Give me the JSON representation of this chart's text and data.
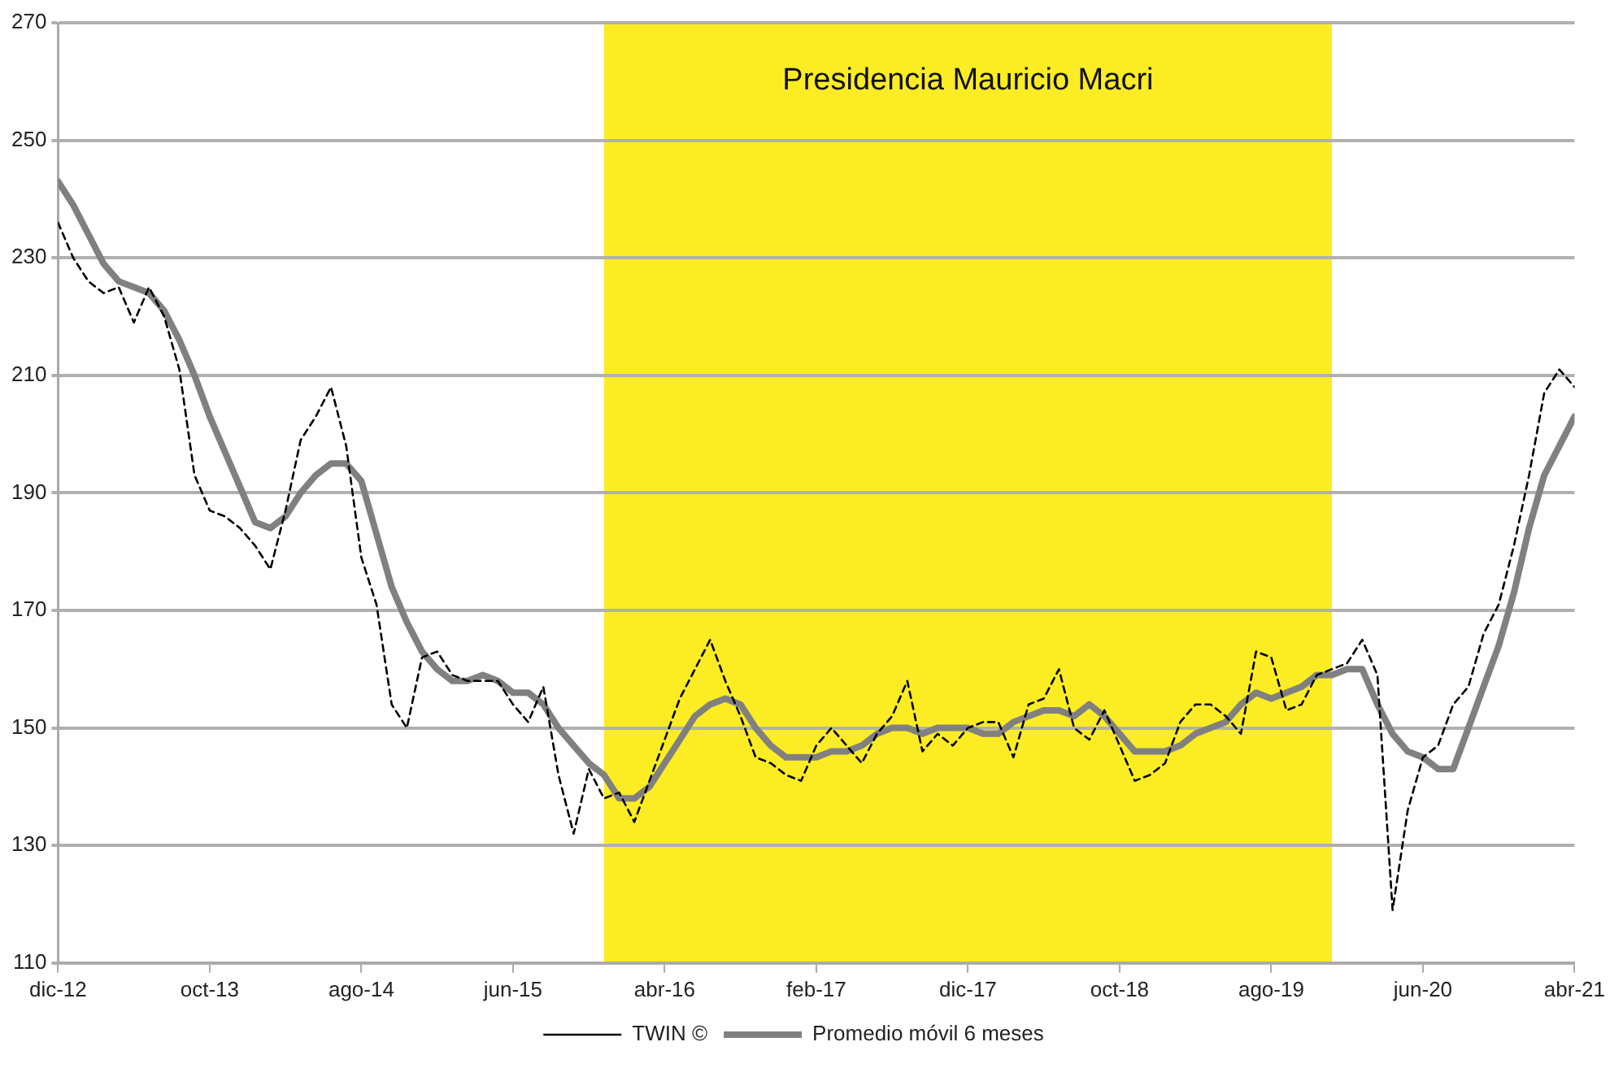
{
  "chart_data": {
    "type": "line",
    "x": [
      "2012-12",
      "2013-01",
      "2013-02",
      "2013-03",
      "2013-04",
      "2013-05",
      "2013-06",
      "2013-07",
      "2013-08",
      "2013-09",
      "2013-10",
      "2013-11",
      "2013-12",
      "2014-01",
      "2014-02",
      "2014-03",
      "2014-04",
      "2014-05",
      "2014-06",
      "2014-07",
      "2014-08",
      "2014-09",
      "2014-10",
      "2014-11",
      "2014-12",
      "2015-01",
      "2015-02",
      "2015-03",
      "2015-04",
      "2015-05",
      "2015-06",
      "2015-07",
      "2015-08",
      "2015-09",
      "2015-10",
      "2015-11",
      "2015-12",
      "2016-01",
      "2016-02",
      "2016-03",
      "2016-04",
      "2016-05",
      "2016-06",
      "2016-07",
      "2016-08",
      "2016-09",
      "2016-10",
      "2016-11",
      "2016-12",
      "2017-01",
      "2017-02",
      "2017-03",
      "2017-04",
      "2017-05",
      "2017-06",
      "2017-07",
      "2017-08",
      "2017-09",
      "2017-10",
      "2017-11",
      "2017-12",
      "2018-01",
      "2018-02",
      "2018-03",
      "2018-04",
      "2018-05",
      "2018-06",
      "2018-07",
      "2018-08",
      "2018-09",
      "2018-10",
      "2018-11",
      "2018-12",
      "2019-01",
      "2019-02",
      "2019-03",
      "2019-04",
      "2019-05",
      "2019-06",
      "2019-07",
      "2019-08",
      "2019-09",
      "2019-10",
      "2019-11",
      "2019-12",
      "2020-01",
      "2020-02",
      "2020-03",
      "2020-04",
      "2020-05",
      "2020-06",
      "2020-07",
      "2020-08",
      "2020-09",
      "2020-10",
      "2020-11",
      "2020-12",
      "2021-01",
      "2021-02",
      "2021-03",
      "2021-04"
    ],
    "series": [
      {
        "name": "TWIN ©",
        "color": "#000000",
        "line_style": "dashed",
        "values": [
          236,
          230,
          226,
          224,
          225,
          219,
          225,
          220,
          211,
          193,
          187,
          186,
          184,
          181,
          177,
          187,
          199,
          203,
          208,
          198,
          179,
          171,
          154,
          150,
          162,
          163,
          159,
          158,
          158,
          158,
          154,
          151,
          157,
          142,
          132,
          143,
          138,
          139,
          134,
          141,
          148,
          155,
          160,
          165,
          158,
          152,
          145,
          144,
          142,
          141,
          147,
          150,
          147,
          144,
          149,
          152,
          158,
          146,
          149,
          147,
          150,
          151,
          151,
          145,
          154,
          155,
          160,
          150,
          148,
          153,
          147,
          141,
          142,
          144,
          151,
          154,
          154,
          152,
          149,
          163,
          162,
          153,
          154,
          159,
          160,
          161,
          165,
          159,
          119,
          136,
          145,
          147,
          154,
          157,
          166,
          171,
          181,
          193,
          207,
          211,
          208
        ]
      },
      {
        "name": "Promedio móvil 6 meses",
        "color": "#808080",
        "line_style": "solid",
        "values": [
          243,
          239,
          234,
          229,
          226,
          225,
          224,
          221,
          216,
          210,
          203,
          197,
          191,
          185,
          184,
          186,
          190,
          193,
          195,
          195,
          192,
          183,
          174,
          168,
          163,
          160,
          158,
          158,
          159,
          158,
          156,
          156,
          154,
          150,
          147,
          144,
          142,
          138,
          138,
          140,
          144,
          148,
          152,
          154,
          155,
          154,
          150,
          147,
          145,
          145,
          145,
          146,
          146,
          147,
          149,
          150,
          150,
          149,
          150,
          150,
          150,
          149,
          149,
          151,
          152,
          153,
          153,
          152,
          154,
          152,
          149,
          146,
          146,
          146,
          147,
          149,
          150,
          151,
          154,
          156,
          155,
          156,
          157,
          159,
          159,
          160,
          160,
          154,
          149,
          146,
          145,
          143,
          143,
          150,
          157,
          164,
          173,
          184,
          193,
          198,
          203
        ]
      }
    ],
    "xlim": [
      "2012-12",
      "2021-04"
    ],
    "xticks": [
      {
        "value": "2012-12",
        "label": "dic-12"
      },
      {
        "value": "2013-10",
        "label": "oct-13"
      },
      {
        "value": "2014-08",
        "label": "ago-14"
      },
      {
        "value": "2015-06",
        "label": "jun-15"
      },
      {
        "value": "2016-04",
        "label": "abr-16"
      },
      {
        "value": "2017-02",
        "label": "feb-17"
      },
      {
        "value": "2017-12",
        "label": "dic-17"
      },
      {
        "value": "2018-10",
        "label": "oct-18"
      },
      {
        "value": "2019-08",
        "label": "ago-19"
      },
      {
        "value": "2020-06",
        "label": "jun-20"
      },
      {
        "value": "2021-04",
        "label": "abr-21"
      }
    ],
    "ylim": [
      110,
      270
    ],
    "yticks": [
      110,
      130,
      150,
      170,
      190,
      210,
      230,
      250,
      270
    ],
    "bands": [
      {
        "axis": "x",
        "from": "2015-12",
        "to": "2019-12",
        "label": "Presidencia Mauricio Macri",
        "color": "#fcec24"
      }
    ],
    "grid": "y",
    "legend": "bottom",
    "marker": "none"
  }
}
